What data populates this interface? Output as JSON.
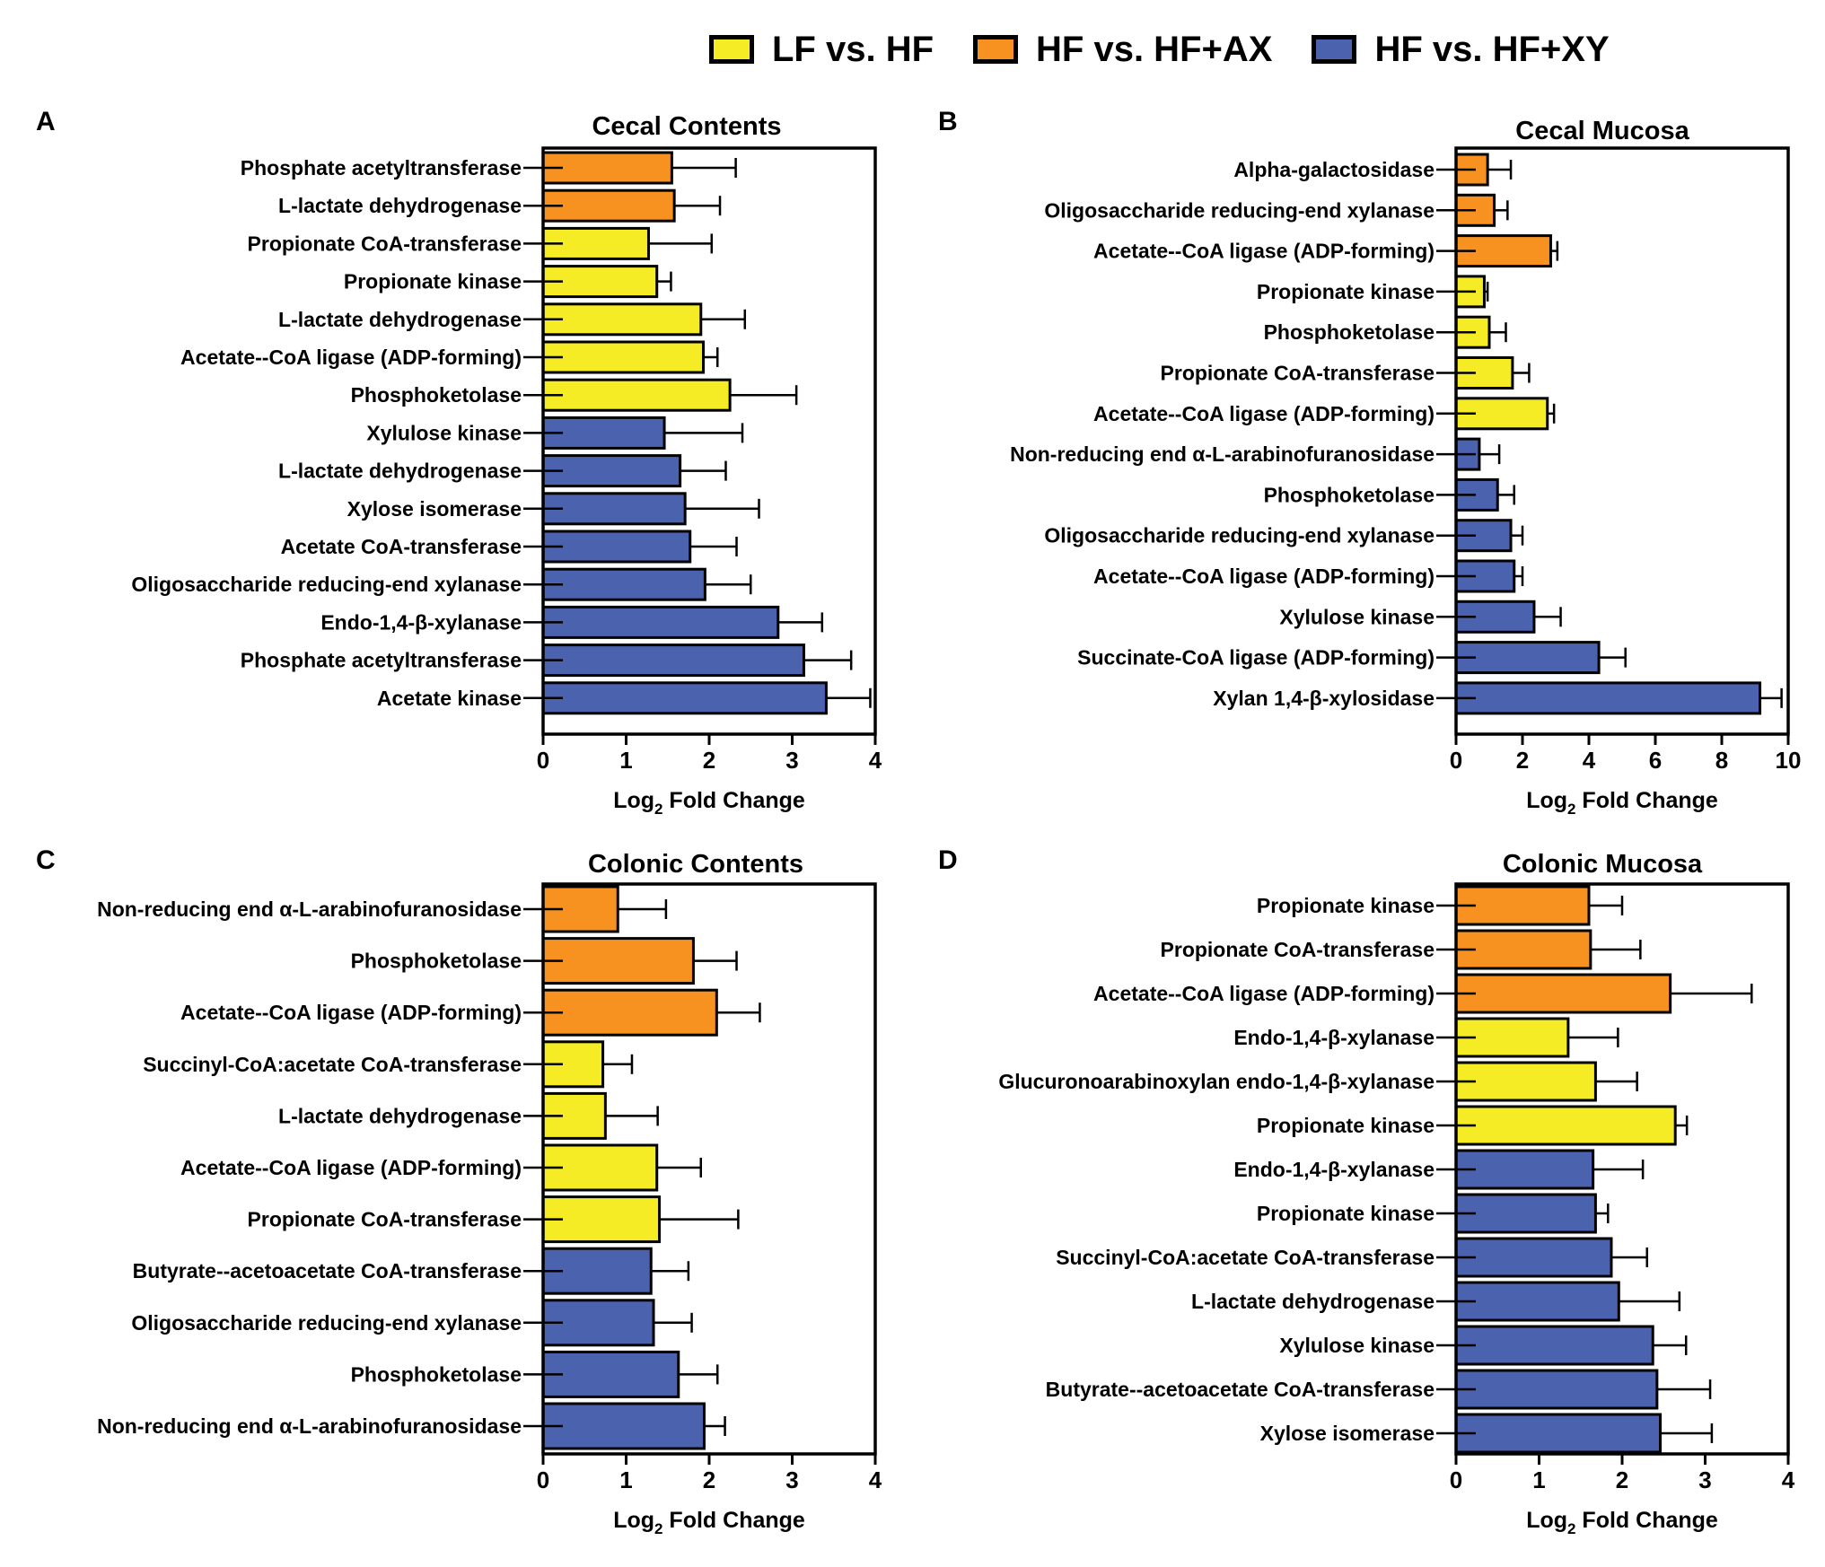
{
  "legend": {
    "items": [
      {
        "label": "LF vs. HF",
        "color": "#f5ec25"
      },
      {
        "label": "HF vs. HF+AX",
        "color": "#f79221"
      },
      {
        "label": "HF vs. HF+XY",
        "color": "#4b62ae"
      }
    ]
  },
  "colors": {
    "LF vs. HF": "#f5ec25",
    "HF vs. HF+AX": "#f79221",
    "HF vs. HF+XY": "#4b62ae"
  },
  "chart_data": [
    {
      "panel": "A",
      "type": "bar",
      "orientation": "horizontal",
      "title": "Cecal Contents",
      "xlabel": "Log2 Fold Change",
      "xlim": [
        0,
        4
      ],
      "ticks": [
        0,
        1,
        2,
        3,
        4
      ],
      "bars": [
        {
          "label": "Phosphate acetyltransferase",
          "group": "HF vs. HF+AX",
          "value": 1.55,
          "error": 0.77
        },
        {
          "label": "L-lactate dehydrogenase",
          "group": "HF vs. HF+AX",
          "value": 1.58,
          "error": 0.55
        },
        {
          "label": "Propionate CoA-transferase",
          "group": "LF vs. HF",
          "value": 1.27,
          "error": 0.76
        },
        {
          "label": "Propionate kinase",
          "group": "LF vs. HF",
          "value": 1.37,
          "error": 0.17
        },
        {
          "label": "L-lactate dehydrogenase",
          "group": "LF vs. HF",
          "value": 1.9,
          "error": 0.53
        },
        {
          "label": "Acetate--CoA ligase (ADP-forming)",
          "group": "LF vs. HF",
          "value": 1.93,
          "error": 0.17
        },
        {
          "label": "Phosphoketolase",
          "group": "LF vs. HF",
          "value": 2.25,
          "error": 0.8
        },
        {
          "label": "Xylulose kinase",
          "group": "HF vs. HF+XY",
          "value": 1.46,
          "error": 0.94
        },
        {
          "label": "L-lactate dehydrogenase",
          "group": "HF vs. HF+XY",
          "value": 1.65,
          "error": 0.55
        },
        {
          "label": "Xylose isomerase",
          "group": "HF vs. HF+XY",
          "value": 1.71,
          "error": 0.89
        },
        {
          "label": "Acetate CoA-transferase",
          "group": "HF vs. HF+XY",
          "value": 1.77,
          "error": 0.56
        },
        {
          "label": "Oligosaccharide reducing-end xylanase",
          "group": "HF vs. HF+XY",
          "value": 1.95,
          "error": 0.55
        },
        {
          "label": "Endo-1,4-β-xylanase",
          "group": "HF vs. HF+XY",
          "value": 2.83,
          "error": 0.53
        },
        {
          "label": "Phosphate acetyltransferase",
          "group": "HF vs. HF+XY",
          "value": 3.14,
          "error": 0.57
        },
        {
          "label": "Acetate kinase",
          "group": "HF vs. HF+XY",
          "value": 3.41,
          "error": 0.53
        }
      ]
    },
    {
      "panel": "B",
      "type": "bar",
      "orientation": "horizontal",
      "title": "Cecal Mucosa",
      "xlabel": "Log2 Fold Change",
      "xlim": [
        0,
        10
      ],
      "ticks": [
        0,
        2,
        4,
        6,
        8,
        10
      ],
      "bars": [
        {
          "label": "Alpha-galactosidase",
          "group": "HF vs. HF+AX",
          "value": 0.95,
          "error": 0.7
        },
        {
          "label": "Oligosaccharide reducing-end xylanase",
          "group": "HF vs. HF+AX",
          "value": 1.15,
          "error": 0.4
        },
        {
          "label": "Acetate--CoA ligase (ADP-forming)",
          "group": "HF vs. HF+AX",
          "value": 2.85,
          "error": 0.2
        },
        {
          "label": "Propionate kinase",
          "group": "LF vs. HF",
          "value": 0.85,
          "error": 0.1
        },
        {
          "label": "Phosphoketolase",
          "group": "LF vs. HF",
          "value": 1.0,
          "error": 0.5
        },
        {
          "label": "Propionate CoA-transferase",
          "group": "LF vs. HF",
          "value": 1.7,
          "error": 0.5
        },
        {
          "label": "Acetate--CoA ligase (ADP-forming)",
          "group": "LF vs. HF",
          "value": 2.75,
          "error": 0.2
        },
        {
          "label": "Non-reducing end α-L-arabinofuranosidase",
          "group": "HF vs. HF+XY",
          "value": 0.7,
          "error": 0.6
        },
        {
          "label": "Phosphoketolase",
          "group": "HF vs. HF+XY",
          "value": 1.25,
          "error": 0.5
        },
        {
          "label": "Oligosaccharide reducing-end xylanase",
          "group": "HF vs. HF+XY",
          "value": 1.65,
          "error": 0.35
        },
        {
          "label": "Acetate--CoA ligase (ADP-forming)",
          "group": "HF vs. HF+XY",
          "value": 1.75,
          "error": 0.25
        },
        {
          "label": "Xylulose kinase",
          "group": "HF vs. HF+XY",
          "value": 2.35,
          "error": 0.8
        },
        {
          "label": "Succinate-CoA ligase (ADP-forming)",
          "group": "HF vs. HF+XY",
          "value": 4.3,
          "error": 0.8
        },
        {
          "label": "Xylan 1,4-β-xylosidase",
          "group": "HF vs. HF+XY",
          "value": 9.15,
          "error": 0.65
        }
      ]
    },
    {
      "panel": "C",
      "type": "bar",
      "orientation": "horizontal",
      "title": "Colonic Contents",
      "xlabel": "Log2 Fold Change",
      "xlim": [
        0,
        4
      ],
      "ticks": [
        0,
        1,
        2,
        3,
        4
      ],
      "bars": [
        {
          "label": "Non-reducing end α-L-arabinofuranosidase",
          "group": "HF vs. HF+AX",
          "value": 0.9,
          "error": 0.58
        },
        {
          "label": "Phosphoketolase",
          "group": "HF vs. HF+AX",
          "value": 1.81,
          "error": 0.52
        },
        {
          "label": "Acetate--CoA ligase (ADP-forming)",
          "group": "HF vs. HF+AX",
          "value": 2.09,
          "error": 0.52
        },
        {
          "label": "Succinyl-CoA:acetate CoA-transferase",
          "group": "LF vs. HF",
          "value": 0.72,
          "error": 0.35
        },
        {
          "label": "L-lactate dehydrogenase",
          "group": "LF vs. HF",
          "value": 0.75,
          "error": 0.63
        },
        {
          "label": "Acetate--CoA ligase (ADP-forming)",
          "group": "LF vs. HF",
          "value": 1.37,
          "error": 0.53
        },
        {
          "label": "Propionate CoA-transferase",
          "group": "LF vs. HF",
          "value": 1.4,
          "error": 0.95
        },
        {
          "label": "Butyrate--acetoacetate CoA-transferase",
          "group": "HF vs. HF+XY",
          "value": 1.3,
          "error": 0.45
        },
        {
          "label": "Oligosaccharide reducing-end xylanase",
          "group": "HF vs. HF+XY",
          "value": 1.33,
          "error": 0.46
        },
        {
          "label": "Phosphoketolase",
          "group": "HF vs. HF+XY",
          "value": 1.63,
          "error": 0.47
        },
        {
          "label": "Non-reducing end α-L-arabinofuranosidase",
          "group": "HF vs. HF+XY",
          "value": 1.94,
          "error": 0.25
        }
      ]
    },
    {
      "panel": "D",
      "type": "bar",
      "orientation": "horizontal",
      "title": "Colonic Mucosa",
      "xlabel": "Log2 Fold Change",
      "xlim": [
        0,
        4
      ],
      "ticks": [
        0,
        1,
        2,
        3,
        4
      ],
      "bars": [
        {
          "label": "Propionate kinase",
          "group": "HF vs. HF+AX",
          "value": 1.6,
          "error": 0.4
        },
        {
          "label": "Propionate CoA-transferase",
          "group": "HF vs. HF+AX",
          "value": 1.62,
          "error": 0.6
        },
        {
          "label": "Acetate--CoA ligase (ADP-forming)",
          "group": "HF vs. HF+AX",
          "value": 2.58,
          "error": 0.98
        },
        {
          "label": "Endo-1,4-β-xylanase",
          "group": "LF vs. HF",
          "value": 1.35,
          "error": 0.6
        },
        {
          "label": "Glucuronoarabinoxylan endo-1,4-β-xylanase",
          "group": "LF vs. HF",
          "value": 1.68,
          "error": 0.5
        },
        {
          "label": "Propionate kinase",
          "group": "LF vs. HF",
          "value": 2.64,
          "error": 0.14
        },
        {
          "label": "Endo-1,4-β-xylanase",
          "group": "HF vs. HF+XY",
          "value": 1.65,
          "error": 0.6
        },
        {
          "label": "Propionate kinase",
          "group": "HF vs. HF+XY",
          "value": 1.68,
          "error": 0.15
        },
        {
          "label": "Succinyl-CoA:acetate CoA-transferase",
          "group": "HF vs. HF+XY",
          "value": 1.87,
          "error": 0.43
        },
        {
          "label": "L-lactate dehydrogenase",
          "group": "HF vs. HF+XY",
          "value": 1.96,
          "error": 0.73
        },
        {
          "label": "Xylulose kinase",
          "group": "HF vs. HF+XY",
          "value": 2.37,
          "error": 0.4
        },
        {
          "label": "Butyrate--acetoacetate CoA-transferase",
          "group": "HF vs. HF+XY",
          "value": 2.42,
          "error": 0.64
        },
        {
          "label": "Xylose isomerase",
          "group": "HF vs. HF+XY",
          "value": 2.46,
          "error": 0.62
        }
      ]
    }
  ]
}
